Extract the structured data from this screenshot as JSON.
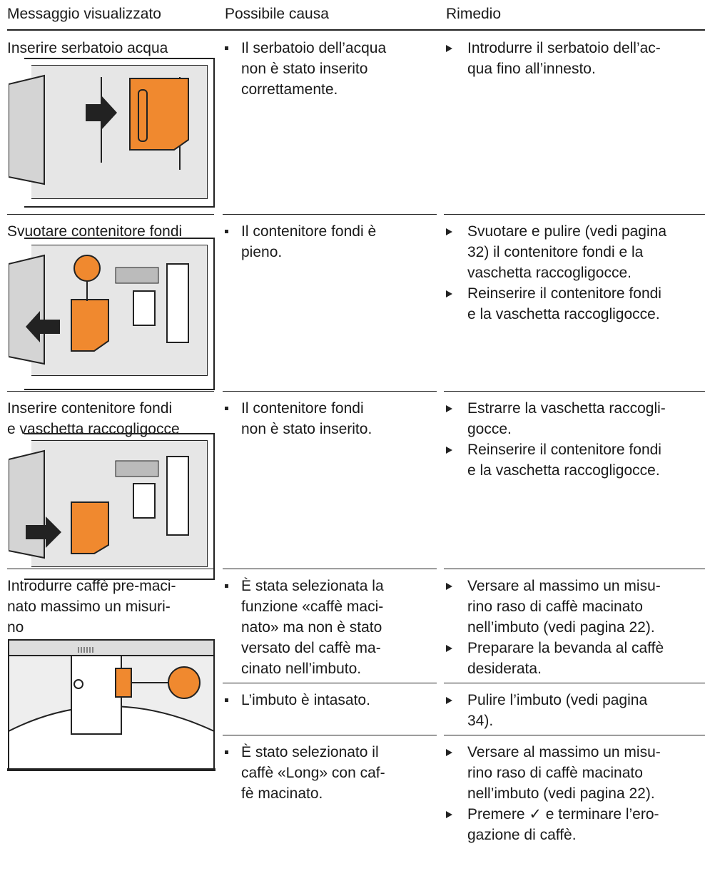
{
  "header": {
    "columns": [
      "Messaggio visualizzato",
      "Possibile causa",
      "Rimedio"
    ]
  },
  "rows": [
    {
      "message": [
        "Inserire serbatoio acqua"
      ],
      "subrows": [
        {
          "causes": [
            [
              "Il serbatoio dell’acqua",
              "non è stato inserito",
              "correttamente."
            ]
          ],
          "remedies": [
            [
              "Introdurre il serbatoio dell’ac-",
              "qua fino all’innesto."
            ]
          ]
        }
      ]
    },
    {
      "message": [
        "Svuotare contenitore fondi"
      ],
      "subrows": [
        {
          "causes": [
            [
              "Il contenitore fondi è",
              "pieno."
            ]
          ],
          "remedies": [
            [
              "Svuotare e pulire (vedi pagina",
              "32) il contenitore fondi e la",
              "vaschetta raccogligocce."
            ],
            [
              "Reinserire il contenitore fondi",
              "e la vaschetta raccogligocce."
            ]
          ]
        }
      ]
    },
    {
      "message": [
        "Inserire contenitore fondi",
        "e vaschetta raccogligocce"
      ],
      "subrows": [
        {
          "causes": [
            [
              "Il contenitore fondi",
              "non è stato inserito."
            ]
          ],
          "remedies": [
            [
              "Estrarre la vaschetta raccogli-",
              "gocce."
            ],
            [
              "Reinserire il contenitore fondi",
              "e la vaschetta raccogligocce."
            ]
          ]
        }
      ]
    },
    {
      "message": [
        "Introdurre caffè pre-maci-",
        "nato massimo un misuri-",
        "no"
      ],
      "subrows": [
        {
          "causes": [
            [
              "È stata selezionata la",
              "funzione «caffè maci-",
              "nato» ma non è stato",
              "versato del caffè ma-",
              "cinato nell’imbuto."
            ]
          ],
          "remedies": [
            [
              "Versare al massimo un misu-",
              "rino raso di caffè macinato",
              "nell’imbuto (vedi pagina 22)."
            ],
            [
              "Preparare la bevanda al caffè",
              "desiderata."
            ]
          ]
        },
        {
          "causes": [
            [
              "L’imbuto è intasato."
            ]
          ],
          "remedies": [
            [
              "Pulire l’imbuto (vedi pagina",
              "34)."
            ]
          ]
        },
        {
          "causes": [
            [
              "È stato selezionato il",
              "caffè «Long» con caf-",
              "fè macinato."
            ]
          ],
          "remedies": [
            [
              "Versare al massimo un misu-",
              "rino raso di caffè macinato",
              "nell’imbuto (vedi pagina 22)."
            ],
            [
              "Premere ✓ e terminare l’ero-",
              "gazione di caffè."
            ]
          ]
        }
      ]
    }
  ]
}
